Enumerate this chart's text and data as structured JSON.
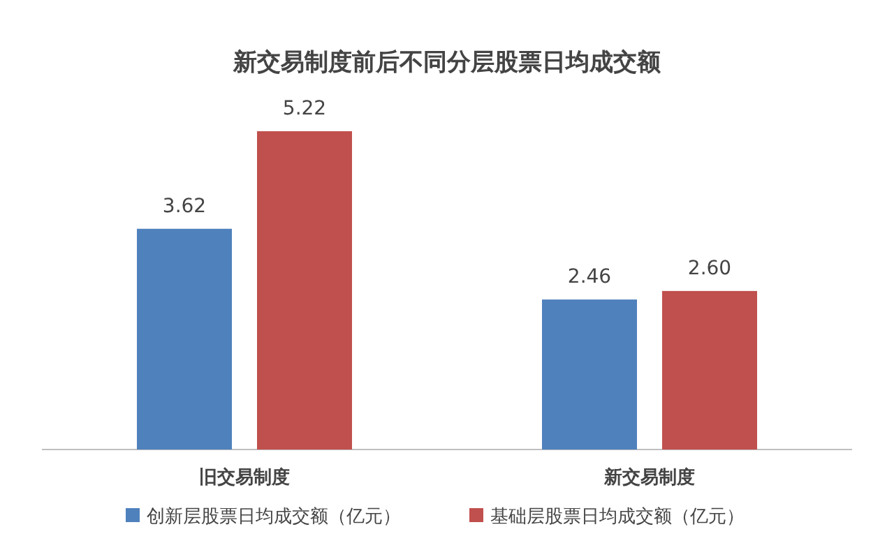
{
  "chart_data": {
    "type": "bar",
    "title": "新交易制度前后不同分层股票日均成交额",
    "categories": [
      "旧交易制度",
      "新交易制度"
    ],
    "series": [
      {
        "name": "创新层股票日均成交额（亿元）",
        "color": "#4f81bd",
        "values": [
          3.62,
          2.46
        ],
        "value_labels": [
          "3.62",
          "2.46"
        ]
      },
      {
        "name": "基础层股票日均成交额（亿元）",
        "color": "#c0504d",
        "values": [
          5.22,
          2.6
        ],
        "value_labels": [
          "5.22",
          "2.60"
        ]
      }
    ],
    "legend": "bottom"
  }
}
